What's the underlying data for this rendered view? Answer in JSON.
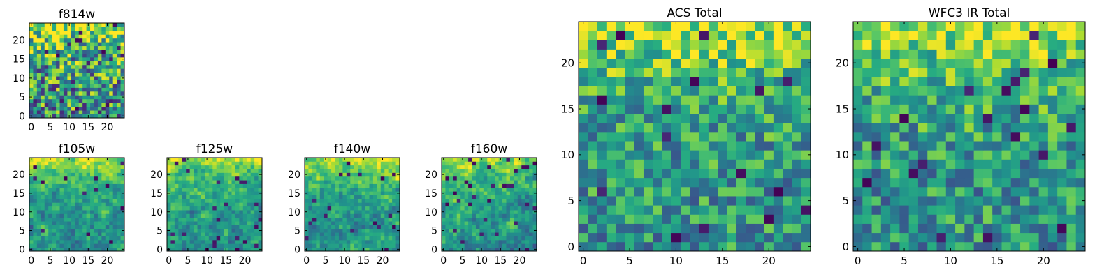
{
  "figure": {
    "colormap": [
      "#440154",
      "#3b528b",
      "#21918c",
      "#5ec962",
      "#fde725"
    ]
  },
  "chart_data": [
    {
      "type": "heatmap",
      "title": "f814w",
      "grid_size": 25,
      "x_ticks": [
        0,
        5,
        10,
        15,
        20
      ],
      "y_ticks": [
        0,
        5,
        10,
        15,
        20
      ],
      "xlim": [
        -0.5,
        24.5
      ],
      "ylim": [
        -0.5,
        24.5
      ],
      "seed": 11,
      "texture": 0.85,
      "smooth": 0,
      "dark_fraction": 0.03,
      "description_values": "25x25 pixel intensity map, values normalized 0-1 (viridis); bright band near the top"
    },
    {
      "type": "heatmap",
      "title": "f105w",
      "grid_size": 25,
      "x_ticks": [
        0,
        5,
        10,
        15,
        20
      ],
      "y_ticks": [
        0,
        5,
        10,
        15,
        20
      ],
      "xlim": [
        -0.5,
        24.5
      ],
      "ylim": [
        -0.5,
        24.5
      ],
      "seed": 23,
      "texture": 0.6,
      "smooth": 1,
      "dark_fraction": 0.02
    },
    {
      "type": "heatmap",
      "title": "f125w",
      "grid_size": 25,
      "x_ticks": [
        0,
        5,
        10,
        15,
        20
      ],
      "y_ticks": [
        0,
        5,
        10,
        15,
        20
      ],
      "xlim": [
        -0.5,
        24.5
      ],
      "ylim": [
        -0.5,
        24.5
      ],
      "seed": 37,
      "texture": 0.6,
      "smooth": 1,
      "dark_fraction": 0.04
    },
    {
      "type": "heatmap",
      "title": "f140w",
      "grid_size": 25,
      "x_ticks": [
        0,
        5,
        10,
        15,
        20
      ],
      "y_ticks": [
        0,
        5,
        10,
        15,
        20
      ],
      "xlim": [
        -0.5,
        24.5
      ],
      "ylim": [
        -0.5,
        24.5
      ],
      "seed": 41,
      "texture": 0.6,
      "smooth": 1,
      "dark_fraction": 0.03
    },
    {
      "type": "heatmap",
      "title": "f160w",
      "grid_size": 25,
      "x_ticks": [
        0,
        5,
        10,
        15,
        20
      ],
      "y_ticks": [
        0,
        5,
        10,
        15,
        20
      ],
      "xlim": [
        -0.5,
        24.5
      ],
      "ylim": [
        -0.5,
        24.5
      ],
      "seed": 53,
      "texture": 0.7,
      "smooth": 1,
      "dark_fraction": 0.05
    },
    {
      "type": "heatmap",
      "title": "ACS Total",
      "grid_size": 25,
      "x_ticks": [
        0,
        5,
        10,
        15,
        20
      ],
      "y_ticks": [
        0,
        5,
        10,
        15,
        20
      ],
      "xlim": [
        -0.5,
        24.5
      ],
      "ylim": [
        -0.5,
        24.5
      ],
      "seed": 67,
      "texture": 0.55,
      "smooth": 0,
      "dark_fraction": 0.025
    },
    {
      "type": "heatmap",
      "title": "WFC3 IR Total",
      "grid_size": 25,
      "x_ticks": [
        0,
        5,
        10,
        15,
        20
      ],
      "y_ticks": [
        0,
        5,
        10,
        15,
        20
      ],
      "xlim": [
        -0.5,
        24.5
      ],
      "ylim": [
        -0.5,
        24.5
      ],
      "seed": 79,
      "texture": 0.55,
      "smooth": 0,
      "dark_fraction": 0.03
    }
  ]
}
